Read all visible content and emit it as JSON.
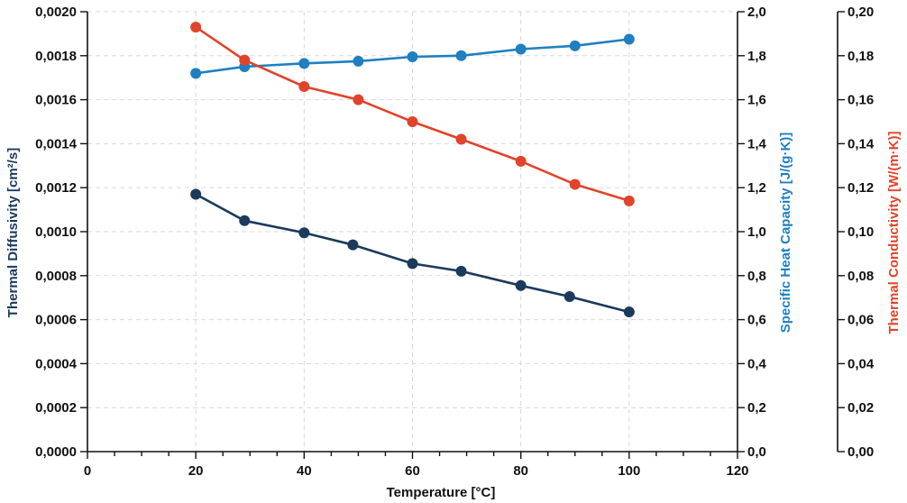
{
  "chart_data": {
    "type": "line",
    "xlabel": "Temperature [°C]",
    "xlim": [
      0,
      120
    ],
    "x_ticks": [
      "0",
      "20",
      "40",
      "60",
      "80",
      "100",
      "120"
    ],
    "grid": true,
    "axes": [
      {
        "id": "diffusivity",
        "side": "left",
        "label": "Thermal Diffusivity [cm²/s]",
        "label_color": "#1b3a5c",
        "ylim": [
          0,
          0.002
        ],
        "ticks": [
          "0,0000",
          "0,0002",
          "0,0004",
          "0,0006",
          "0,0008",
          "0,0010",
          "0,0012",
          "0,0014",
          "0,0016",
          "0,0018",
          "0,0020"
        ]
      },
      {
        "id": "heat_capacity",
        "side": "right",
        "label": "Specific Heat Capacity [J/(g·K)]",
        "label_color": "#1f7fc0",
        "ylim": [
          0,
          2.0
        ],
        "ticks": [
          "0,0",
          "0,2",
          "0,4",
          "0,6",
          "0,8",
          "1,0",
          "1,2",
          "1,4",
          "1,6",
          "1,8",
          "2,0"
        ]
      },
      {
        "id": "conductivity",
        "side": "right-outer",
        "label": "Thermal Conductivity [W/(m·K)]",
        "label_color": "#e0442a",
        "ylim": [
          0,
          0.2
        ],
        "ticks": [
          "0,00",
          "0,02",
          "0,04",
          "0,06",
          "0,08",
          "0,10",
          "0,12",
          "0,14",
          "0,16",
          "0,18",
          "0,20"
        ]
      }
    ],
    "series": [
      {
        "axis": "diffusivity",
        "color": "#1b3a5c",
        "x": [
          20,
          29,
          40,
          49,
          60,
          69,
          80,
          89,
          100
        ],
        "y": [
          0.00117,
          0.00105,
          0.000995,
          0.00094,
          0.000855,
          0.00082,
          0.000755,
          0.000705,
          0.000635
        ]
      },
      {
        "axis": "heat_capacity",
        "color": "#1f7fc0",
        "x": [
          20,
          29,
          40,
          50,
          60,
          69,
          80,
          90,
          100
        ],
        "y": [
          1.72,
          1.75,
          1.765,
          1.775,
          1.795,
          1.8,
          1.83,
          1.845,
          1.875
        ]
      },
      {
        "axis": "conductivity",
        "color": "#e0442a",
        "x": [
          20,
          29,
          40,
          50,
          60,
          69,
          80,
          90,
          100
        ],
        "y": [
          0.193,
          0.178,
          0.166,
          0.16,
          0.15,
          0.142,
          0.132,
          0.1215,
          0.114
        ]
      }
    ]
  }
}
